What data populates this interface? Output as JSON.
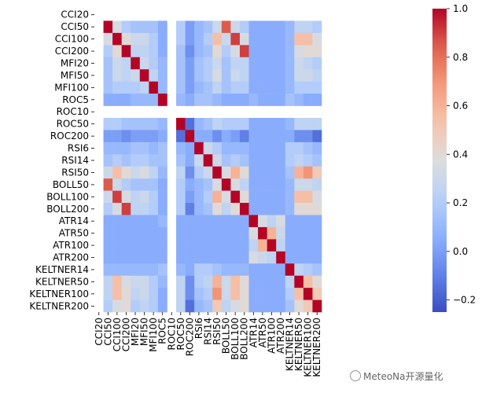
{
  "chart_data": {
    "type": "heatmap",
    "labels": [
      "CCI20",
      "CCI50",
      "CCI100",
      "CCI200",
      "MFI20",
      "MFI50",
      "MFI100",
      "ROC5",
      "ROC10",
      "ROC50",
      "ROC200",
      "RSI6",
      "RSI14",
      "RSI50",
      "BOLL50",
      "BOLL100",
      "BOLL200",
      "ATR14",
      "ATR50",
      "ATR100",
      "ATR200",
      "KELTNER14",
      "KELTNER50",
      "KELTNER100",
      "KELTNER200"
    ],
    "nan_labels": [
      "CCI20",
      "ROC10"
    ],
    "colorbar": {
      "min": -0.25,
      "max": 1.0,
      "ticks": [
        "−0.2",
        "0.0",
        "0.2",
        "0.4",
        "0.6",
        "0.8",
        "1.0"
      ],
      "tick_values": [
        -0.2,
        0.0,
        0.2,
        0.4,
        0.6,
        0.8,
        1.0
      ]
    },
    "colormap": "coolwarm",
    "matrix": [
      [
        null,
        null,
        null,
        null,
        null,
        null,
        null,
        null,
        null,
        null,
        null,
        null,
        null,
        null,
        null,
        null,
        null,
        null,
        null,
        null,
        null,
        null,
        null,
        null,
        null
      ],
      [
        null,
        1,
        0.35,
        0.2,
        0.15,
        0.15,
        0.15,
        0.05,
        null,
        0.2,
        0.0,
        0.1,
        0.15,
        0.3,
        0.85,
        0.3,
        0.2,
        0.05,
        0.05,
        0.05,
        0.05,
        0.1,
        0.25,
        0.25,
        0.2
      ],
      [
        null,
        0.35,
        1,
        0.4,
        0.3,
        0.3,
        0.2,
        0.05,
        null,
        0.2,
        0.0,
        0.1,
        0.2,
        0.55,
        0.3,
        0.9,
        0.35,
        0.05,
        0.05,
        0.05,
        0.05,
        0.1,
        0.55,
        0.55,
        0.35
      ],
      [
        null,
        0.2,
        0.4,
        1,
        0.25,
        0.25,
        0.2,
        0.05,
        null,
        0.15,
        -0.05,
        0.1,
        0.15,
        0.4,
        0.2,
        0.35,
        0.9,
        0.05,
        0.05,
        0.05,
        0.05,
        0.1,
        0.35,
        0.4,
        0.4
      ],
      [
        null,
        0.15,
        0.3,
        0.25,
        1,
        0.3,
        0.2,
        0.1,
        null,
        0.15,
        0.0,
        0.15,
        0.2,
        0.3,
        0.15,
        0.25,
        0.25,
        0.05,
        0.05,
        0.05,
        0.05,
        0.1,
        0.3,
        0.25,
        0.2
      ],
      [
        null,
        0.15,
        0.3,
        0.25,
        0.3,
        1,
        0.25,
        0.1,
        null,
        0.15,
        0.0,
        0.15,
        0.2,
        0.35,
        0.15,
        0.3,
        0.25,
        0.05,
        0.05,
        0.05,
        0.05,
        0.1,
        0.3,
        0.3,
        0.25
      ],
      [
        null,
        0.15,
        0.2,
        0.2,
        0.2,
        0.25,
        1,
        0.1,
        null,
        0.15,
        0.0,
        0.1,
        0.15,
        0.25,
        0.15,
        0.2,
        0.2,
        0.05,
        0.05,
        0.05,
        0.05,
        0.1,
        0.2,
        0.2,
        0.2
      ],
      [
        null,
        0.05,
        0.05,
        0.05,
        0.1,
        0.1,
        0.1,
        1,
        null,
        0.1,
        0.05,
        0.15,
        0.15,
        0.1,
        0.05,
        0.05,
        0.05,
        0.1,
        0.05,
        0.05,
        0.05,
        0.15,
        0.1,
        0.05,
        0.05
      ],
      [
        null,
        null,
        null,
        null,
        null,
        null,
        null,
        null,
        null,
        null,
        null,
        null,
        null,
        null,
        null,
        null,
        null,
        null,
        null,
        null,
        null,
        null,
        null,
        null,
        null
      ],
      [
        null,
        0.2,
        0.2,
        0.15,
        0.15,
        0.15,
        0.15,
        0.1,
        null,
        1,
        -0.15,
        0.1,
        0.15,
        0.25,
        0.2,
        0.2,
        0.2,
        0.05,
        0.05,
        0.05,
        0.05,
        0.1,
        0.25,
        0.25,
        0.25
      ],
      [
        null,
        0.0,
        0.0,
        -0.05,
        0.0,
        0.0,
        0.0,
        0.05,
        null,
        -0.15,
        1,
        0.05,
        0.05,
        -0.05,
        0.05,
        0.0,
        -0.1,
        0.05,
        0.05,
        0.05,
        0.05,
        0.05,
        -0.05,
        -0.05,
        -0.15
      ],
      [
        null,
        0.1,
        0.1,
        0.1,
        0.15,
        0.15,
        0.1,
        0.15,
        null,
        0.1,
        0.05,
        1,
        0.3,
        0.2,
        0.1,
        0.1,
        0.1,
        0.05,
        0.05,
        0.05,
        0.05,
        0.2,
        0.2,
        0.15,
        0.1
      ],
      [
        null,
        0.15,
        0.2,
        0.15,
        0.2,
        0.2,
        0.15,
        0.15,
        null,
        0.15,
        0.05,
        0.3,
        1,
        0.3,
        0.15,
        0.2,
        0.15,
        0.05,
        0.05,
        0.05,
        0.05,
        0.2,
        0.25,
        0.2,
        0.15
      ],
      [
        null,
        0.3,
        0.55,
        0.4,
        0.3,
        0.35,
        0.25,
        0.1,
        null,
        0.25,
        -0.05,
        0.2,
        0.3,
        1,
        0.35,
        0.6,
        0.4,
        0.05,
        0.05,
        0.05,
        0.05,
        0.15,
        0.6,
        0.7,
        0.5
      ],
      [
        null,
        0.85,
        0.3,
        0.2,
        0.15,
        0.15,
        0.15,
        0.05,
        null,
        0.2,
        0.05,
        0.1,
        0.15,
        0.35,
        1,
        0.35,
        0.25,
        0.05,
        0.05,
        0.05,
        0.05,
        0.1,
        0.3,
        0.3,
        0.25
      ],
      [
        null,
        0.3,
        0.9,
        0.35,
        0.25,
        0.3,
        0.2,
        0.05,
        null,
        0.2,
        0.0,
        0.1,
        0.2,
        0.6,
        0.35,
        1,
        0.4,
        0.05,
        0.05,
        0.05,
        0.05,
        0.1,
        0.55,
        0.55,
        0.35
      ],
      [
        null,
        0.2,
        0.35,
        0.9,
        0.25,
        0.25,
        0.2,
        0.05,
        null,
        0.2,
        -0.1,
        0.1,
        0.15,
        0.4,
        0.25,
        0.4,
        1,
        0.05,
        0.05,
        0.05,
        0.05,
        0.1,
        0.4,
        0.4,
        0.4
      ],
      [
        null,
        0.05,
        0.05,
        0.05,
        0.05,
        0.05,
        0.05,
        0.1,
        null,
        0.05,
        0.05,
        0.05,
        0.05,
        0.05,
        0.05,
        0.05,
        0.05,
        1,
        0.35,
        0.25,
        0.35,
        0.05,
        0.05,
        0.05,
        0.05
      ],
      [
        null,
        0.05,
        0.05,
        0.05,
        0.05,
        0.05,
        0.05,
        0.05,
        null,
        0.05,
        0.05,
        0.05,
        0.05,
        0.05,
        0.05,
        0.05,
        0.05,
        0.35,
        1,
        0.6,
        0.3,
        0.05,
        0.05,
        0.05,
        0.05
      ],
      [
        null,
        0.05,
        0.05,
        0.05,
        0.05,
        0.05,
        0.05,
        0.05,
        null,
        0.05,
        0.05,
        0.05,
        0.05,
        0.05,
        0.05,
        0.05,
        0.05,
        0.25,
        0.6,
        1,
        0.25,
        0.05,
        0.05,
        0.05,
        0.05
      ],
      [
        null,
        0.05,
        0.05,
        0.05,
        0.05,
        0.05,
        0.05,
        0.05,
        null,
        0.05,
        0.05,
        0.05,
        0.05,
        0.05,
        0.05,
        0.05,
        0.05,
        0.35,
        0.3,
        0.25,
        1,
        0.05,
        0.05,
        0.05,
        0.05
      ],
      [
        null,
        0.1,
        0.1,
        0.1,
        0.1,
        0.1,
        0.1,
        0.15,
        null,
        0.1,
        0.05,
        0.2,
        0.2,
        0.15,
        0.1,
        0.1,
        0.1,
        0.05,
        0.05,
        0.05,
        0.05,
        1,
        0.25,
        0.2,
        0.15
      ],
      [
        null,
        0.25,
        0.55,
        0.35,
        0.3,
        0.3,
        0.2,
        0.1,
        null,
        0.25,
        -0.05,
        0.2,
        0.25,
        0.6,
        0.3,
        0.55,
        0.4,
        0.05,
        0.05,
        0.05,
        0.05,
        0.25,
        1,
        0.55,
        0.4
      ],
      [
        null,
        0.25,
        0.55,
        0.4,
        0.25,
        0.3,
        0.2,
        0.05,
        null,
        0.25,
        -0.05,
        0.15,
        0.2,
        0.7,
        0.3,
        0.55,
        0.4,
        0.05,
        0.05,
        0.05,
        0.05,
        0.2,
        0.55,
        1,
        0.5
      ],
      [
        null,
        0.2,
        0.35,
        0.4,
        0.2,
        0.25,
        0.2,
        0.05,
        null,
        0.25,
        -0.15,
        0.1,
        0.15,
        0.5,
        0.25,
        0.35,
        0.4,
        0.05,
        0.05,
        0.05,
        0.05,
        0.15,
        0.4,
        0.5,
        1
      ]
    ]
  },
  "watermark": {
    "text": "MeteoNa开源量化",
    "icon": "wechat-icon"
  }
}
